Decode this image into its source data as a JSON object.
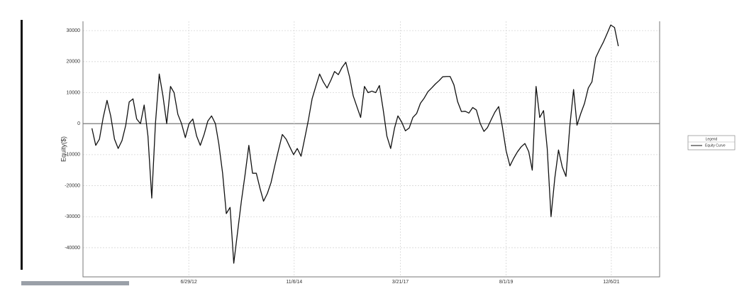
{
  "chart_data": {
    "type": "line",
    "y_label": "Equity($)",
    "legend_title": "Legend",
    "legend": "right",
    "grid": true,
    "zero_line": true,
    "xlim": [
      "2010-02-17",
      "2023-01-04"
    ],
    "xticks": [
      {
        "value": "2012-06-29",
        "label": "6/29/12"
      },
      {
        "value": "2014-11-06",
        "label": "11/6/14"
      },
      {
        "value": "2017-03-21",
        "label": "3/21/17"
      },
      {
        "value": "2019-08-01",
        "label": "8/1/19"
      },
      {
        "value": "2021-12-06",
        "label": "12/6/21"
      }
    ],
    "ylim": [
      -49400,
      33000
    ],
    "yticks": [
      -40000,
      -30000,
      -20000,
      -10000,
      0,
      10000,
      20000,
      30000
    ],
    "x": [
      "2010-05-01",
      "2010-06-01",
      "2010-07-01",
      "2010-08-01",
      "2010-09-01",
      "2010-10-01",
      "2010-11-01",
      "2010-12-01",
      "2011-01-01",
      "2011-02-01",
      "2011-03-01",
      "2011-04-01",
      "2011-05-01",
      "2011-06-01",
      "2011-07-01",
      "2011-08-01",
      "2011-09-01",
      "2011-10-01",
      "2011-11-01",
      "2011-12-01",
      "2012-01-01",
      "2012-02-01",
      "2012-03-01",
      "2012-04-01",
      "2012-05-01",
      "2012-06-01",
      "2012-07-01",
      "2012-08-01",
      "2012-09-01",
      "2012-10-01",
      "2012-11-01",
      "2012-12-01",
      "2013-01-01",
      "2013-02-01",
      "2013-03-01",
      "2013-04-01",
      "2013-05-01",
      "2013-06-01",
      "2013-07-01",
      "2013-08-01",
      "2013-09-01",
      "2013-10-01",
      "2013-11-01",
      "2013-12-01",
      "2014-01-01",
      "2014-02-01",
      "2014-03-01",
      "2014-04-01",
      "2014-05-01",
      "2014-06-01",
      "2014-07-01",
      "2014-08-01",
      "2014-09-01",
      "2014-10-01",
      "2014-11-01",
      "2014-12-01",
      "2015-01-01",
      "2015-02-01",
      "2015-03-01",
      "2015-04-01",
      "2015-05-01",
      "2015-06-01",
      "2015-07-01",
      "2015-08-01",
      "2015-09-01",
      "2015-10-01",
      "2015-11-01",
      "2015-12-01",
      "2016-01-01",
      "2016-02-01",
      "2016-03-01",
      "2016-04-01",
      "2016-05-01",
      "2016-06-01",
      "2016-07-01",
      "2016-08-01",
      "2016-09-01",
      "2016-10-01",
      "2016-11-01",
      "2016-12-01",
      "2017-01-01",
      "2017-02-01",
      "2017-03-01",
      "2017-04-01",
      "2017-05-01",
      "2017-06-01",
      "2017-07-01",
      "2017-08-01",
      "2017-09-01",
      "2017-10-01",
      "2017-11-01",
      "2017-12-01",
      "2018-01-01",
      "2018-02-01",
      "2018-03-01",
      "2018-04-01",
      "2018-05-01",
      "2018-06-01",
      "2018-07-01",
      "2018-08-01",
      "2018-09-01",
      "2018-10-01",
      "2018-11-01",
      "2018-12-01",
      "2019-01-01",
      "2019-02-01",
      "2019-03-01",
      "2019-04-01",
      "2019-05-01",
      "2019-06-01",
      "2019-07-01",
      "2019-08-01",
      "2019-09-01",
      "2019-10-01",
      "2019-11-01",
      "2019-12-01",
      "2020-01-01",
      "2020-02-01",
      "2020-03-01",
      "2020-04-01",
      "2020-05-01",
      "2020-06-01",
      "2020-07-01",
      "2020-08-01",
      "2020-09-01",
      "2020-10-01",
      "2020-11-01",
      "2020-12-01",
      "2021-01-01",
      "2021-02-01",
      "2021-03-01",
      "2021-04-01",
      "2021-05-01",
      "2021-06-01",
      "2021-07-01",
      "2021-08-01",
      "2021-09-01",
      "2021-10-01",
      "2021-11-01",
      "2021-12-01",
      "2022-01-01",
      "2022-02-01"
    ],
    "series": [
      {
        "name": "Equity Curve",
        "color": "#111111",
        "values": [
          -1500,
          -7000,
          -5000,
          2000,
          7500,
          2500,
          -5000,
          -8000,
          -5500,
          -500,
          7000,
          8000,
          1500,
          0,
          6000,
          -4000,
          -24000,
          0,
          16000,
          9000,
          0,
          12000,
          10000,
          3000,
          0,
          -4500,
          0,
          1500,
          -4000,
          -7000,
          -3500,
          800,
          2500,
          0,
          -6500,
          -16000,
          -29000,
          -27000,
          -45000,
          -35000,
          -25000,
          -16500,
          -7000,
          -16000,
          -16000,
          -21000,
          -25000,
          -22500,
          -19000,
          -13500,
          -8500,
          -3500,
          -5000,
          -7500,
          -10000,
          -8000,
          -10500,
          -4500,
          1000,
          8000,
          12000,
          16000,
          13500,
          11500,
          14000,
          16800,
          15800,
          18100,
          19800,
          15000,
          9000,
          5400,
          2000,
          12000,
          10000,
          10500,
          10000,
          12300,
          4500,
          -4000,
          -8000,
          -1500,
          2500,
          500,
          -2300,
          -1400,
          2000,
          3300,
          6600,
          8200,
          10300,
          11500,
          12800,
          13900,
          15100,
          15200,
          15200,
          12500,
          7100,
          3900,
          4000,
          3400,
          5200,
          4400,
          100,
          -2500,
          -1300,
          1300,
          3700,
          5500,
          -1000,
          -8800,
          -13600,
          -11200,
          -9100,
          -7500,
          -6400,
          -9000,
          -15000,
          12000,
          2000,
          4200,
          -8000,
          -30000,
          -17500,
          -8500,
          -14000,
          -17000,
          -1000,
          11000,
          -500,
          3300,
          6500,
          11500,
          13500,
          21300,
          23900,
          26200,
          29000,
          31800,
          31000,
          25000
        ]
      }
    ]
  }
}
